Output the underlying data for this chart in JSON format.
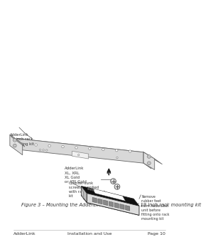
{
  "title": "Figure 3 – Mounting the AdderLink in the optional 19 inch rack mounting kit",
  "footer_left": "AdderLink",
  "footer_center": "Installation and Use",
  "footer_right": "Page 10",
  "label_device": "AdderLink\nXL, XRL\nXL Gold\nor XRI Gold",
  "label_remove": "Remove\nrubber feet\nfrom AdderLink\nunit before\nfitting onto rack\nmounting kit",
  "label_rack": "AdderLink\n19 inch rack\nmounting kit",
  "label_screws": "Counter-sunk\nscrews supplied\nwith rack mounting\nkit",
  "bg_color": "#ffffff",
  "text_color": "#333333",
  "line_color": "#555555"
}
